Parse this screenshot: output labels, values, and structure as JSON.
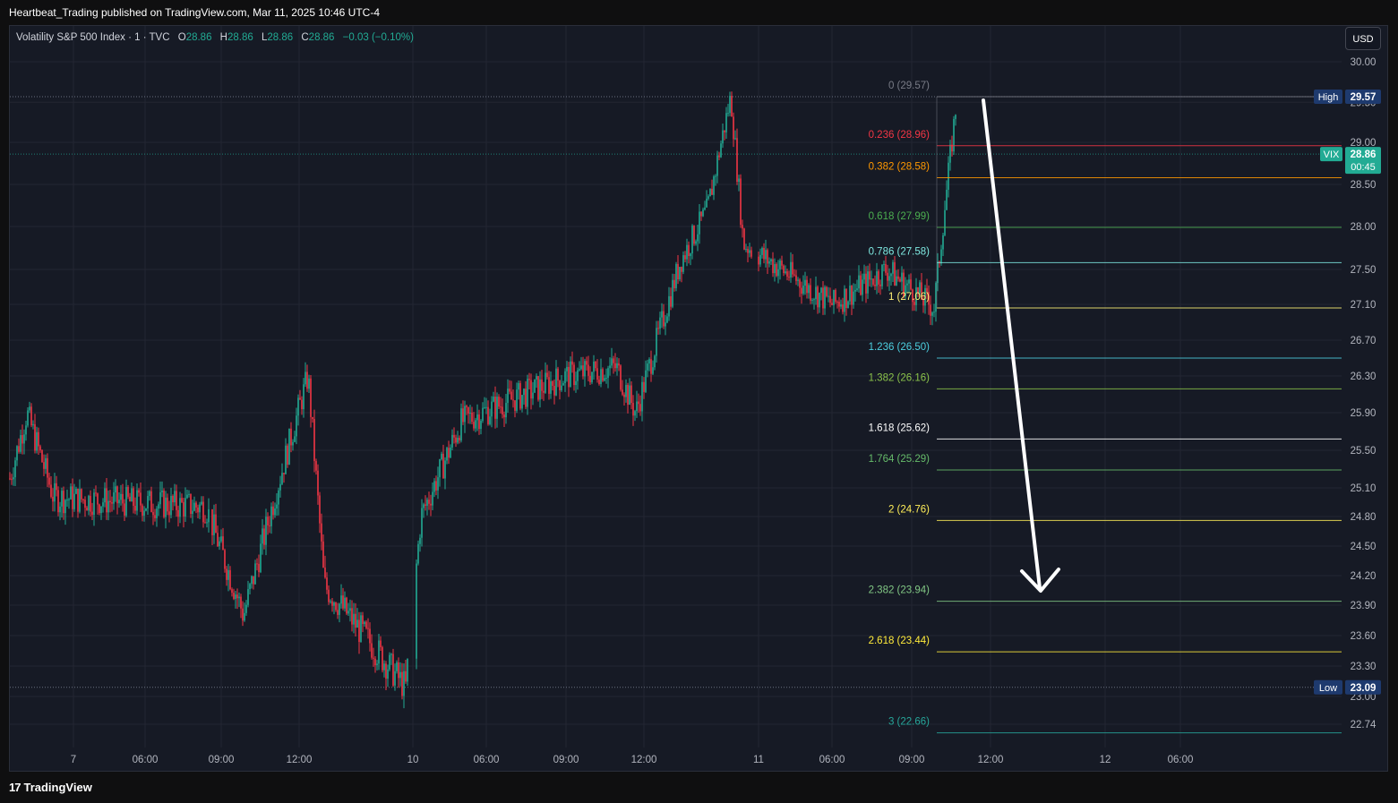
{
  "header": {
    "publish_line": "Heartbeat_Trading published on TradingView.com, Mar 11, 2025 10:46 UTC-4"
  },
  "legend": {
    "symbol": "Volatility S&P 500 Index · 1 · TVC",
    "open_label": "O",
    "open_value": "28.86",
    "high_label": "H",
    "high_value": "28.86",
    "low_label": "L",
    "low_value": "28.86",
    "close_label": "C",
    "close_value": "28.86",
    "change": "−0.03 (−0.10%)"
  },
  "currency_button": "USD",
  "footer": {
    "logo_text": "TradingView",
    "logo_glyph": "17"
  },
  "colors": {
    "background": "#161a25",
    "up": "#22ab94",
    "down": "#f23645",
    "text": "#b2b5be",
    "grid": "#232632"
  },
  "chart_data": {
    "type": "candlestick",
    "symbol": "VIX",
    "y_axis_ticks": [
      "30.00",
      "29.50",
      "29.00",
      "28.50",
      "28.00",
      "27.50",
      "27.10",
      "26.70",
      "26.30",
      "25.90",
      "25.50",
      "25.10",
      "24.80",
      "24.50",
      "24.20",
      "23.90",
      "23.60",
      "23.30",
      "23.00",
      "22.74"
    ],
    "x_axis_ticks": [
      "7",
      "06:00",
      "09:00",
      "12:00",
      "10",
      "06:00",
      "09:00",
      "12:00",
      "11",
      "06:00",
      "09:00",
      "12:00",
      "12",
      "06:00"
    ],
    "high_marker": {
      "label": "High",
      "value": "29.57"
    },
    "low_marker": {
      "label": "Low",
      "value": "23.09"
    },
    "last_price": {
      "label": "VIX",
      "value": "28.86",
      "countdown": "00:45"
    },
    "price_path_key_points": [
      {
        "t": "7",
        "v": 25.2
      },
      {
        "t": "7",
        "v": 25.9
      },
      {
        "t": "7",
        "v": 25.0
      },
      {
        "t": "09:00",
        "v": 24.9
      },
      {
        "t": "12:00",
        "v": 23.8
      },
      {
        "t": "12:00",
        "v": 26.3
      },
      {
        "t": "12:00",
        "v": 24.1
      },
      {
        "t": "10",
        "v": 23.09
      },
      {
        "t": "10",
        "v": 24.8
      },
      {
        "t": "10",
        "v": 25.8
      },
      {
        "t": "09:00",
        "v": 26.3
      },
      {
        "t": "12:00",
        "v": 26.4
      },
      {
        "t": "12:00",
        "v": 25.9
      },
      {
        "t": "12:00",
        "v": 27.6
      },
      {
        "t": "11",
        "v": 28.2
      },
      {
        "t": "11",
        "v": 29.57
      },
      {
        "t": "11",
        "v": 27.8
      },
      {
        "t": "06:00",
        "v": 27.1
      },
      {
        "t": "09:00",
        "v": 27.5
      },
      {
        "t": "09:00",
        "v": 27.06
      },
      {
        "t": "09:00",
        "v": 29.5
      }
    ],
    "fibonacci_levels": [
      {
        "label": "0 (29.57)",
        "value": 29.57,
        "color": "#787b86"
      },
      {
        "label": "0.236 (28.96)",
        "value": 28.96,
        "color": "#f23645"
      },
      {
        "label": "0.382 (28.58)",
        "value": 28.58,
        "color": "#ff9800"
      },
      {
        "label": "0.618 (27.99)",
        "value": 27.99,
        "color": "#4caf50"
      },
      {
        "label": "0.786 (27.58)",
        "value": 27.58,
        "color": "#7ee8e0"
      },
      {
        "label": "1 (27.06)",
        "value": 27.06,
        "color": "#fff176"
      },
      {
        "label": "1.236 (26.50)",
        "value": 26.5,
        "color": "#4dd0e1"
      },
      {
        "label": "1.382 (26.16)",
        "value": 26.16,
        "color": "#8bc34a"
      },
      {
        "label": "1.618 (25.62)",
        "value": 25.62,
        "color": "#ffffff"
      },
      {
        "label": "1.764 (25.29)",
        "value": 25.29,
        "color": "#66bb6a"
      },
      {
        "label": "2 (24.76)",
        "value": 24.76,
        "color": "#ffee58"
      },
      {
        "label": "2.382 (23.94)",
        "value": 23.94,
        "color": "#81c784"
      },
      {
        "label": "2.618 (23.44)",
        "value": 23.44,
        "color": "#ffeb3b"
      },
      {
        "label": "3 (22.66)",
        "value": 22.66,
        "color": "#26a69a"
      }
    ]
  }
}
